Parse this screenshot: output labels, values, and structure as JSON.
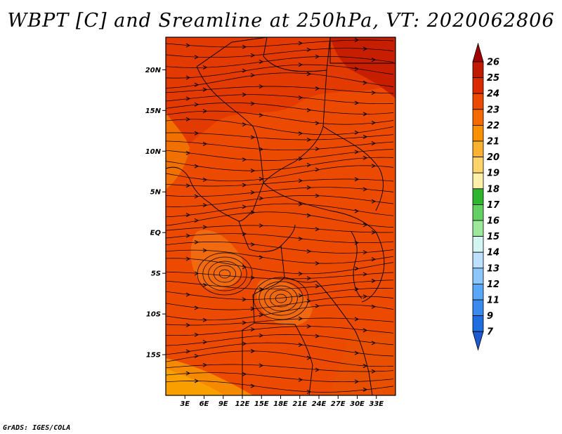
{
  "title": "WBPT [C] and Sreamline at 250hPa, VT: 2020062806",
  "footer": "GrADS: IGES/COLA",
  "map": {
    "lon_range": [
      0,
      36
    ],
    "lat_range": [
      -20,
      24
    ],
    "x_ticks": [
      "3E",
      "6E",
      "9E",
      "12E",
      "15E",
      "18E",
      "21E",
      "24E",
      "27E",
      "30E",
      "33E"
    ],
    "y_ticks": [
      "20N",
      "15N",
      "10N",
      "5N",
      "EQ",
      "5S",
      "10S",
      "15S"
    ]
  },
  "colorbar": {
    "levels": [
      "26",
      "25",
      "24",
      "23",
      "22",
      "21",
      "20",
      "19",
      "18",
      "17",
      "16",
      "15",
      "14",
      "13",
      "12",
      "11",
      "9",
      "7"
    ],
    "colors": [
      "#a00000",
      "#c01a00",
      "#dc2a00",
      "#ec4a00",
      "#f56a00",
      "#f99000",
      "#fab030",
      "#fcd46a",
      "#fef0a8",
      "#2fb52f",
      "#62d062",
      "#9ee89e",
      "#d2f7f2",
      "#bde0ff",
      "#8cc6ff",
      "#5aa6f8",
      "#3a8af0",
      "#1f6ee0",
      "#1e5ad0"
    ]
  }
}
